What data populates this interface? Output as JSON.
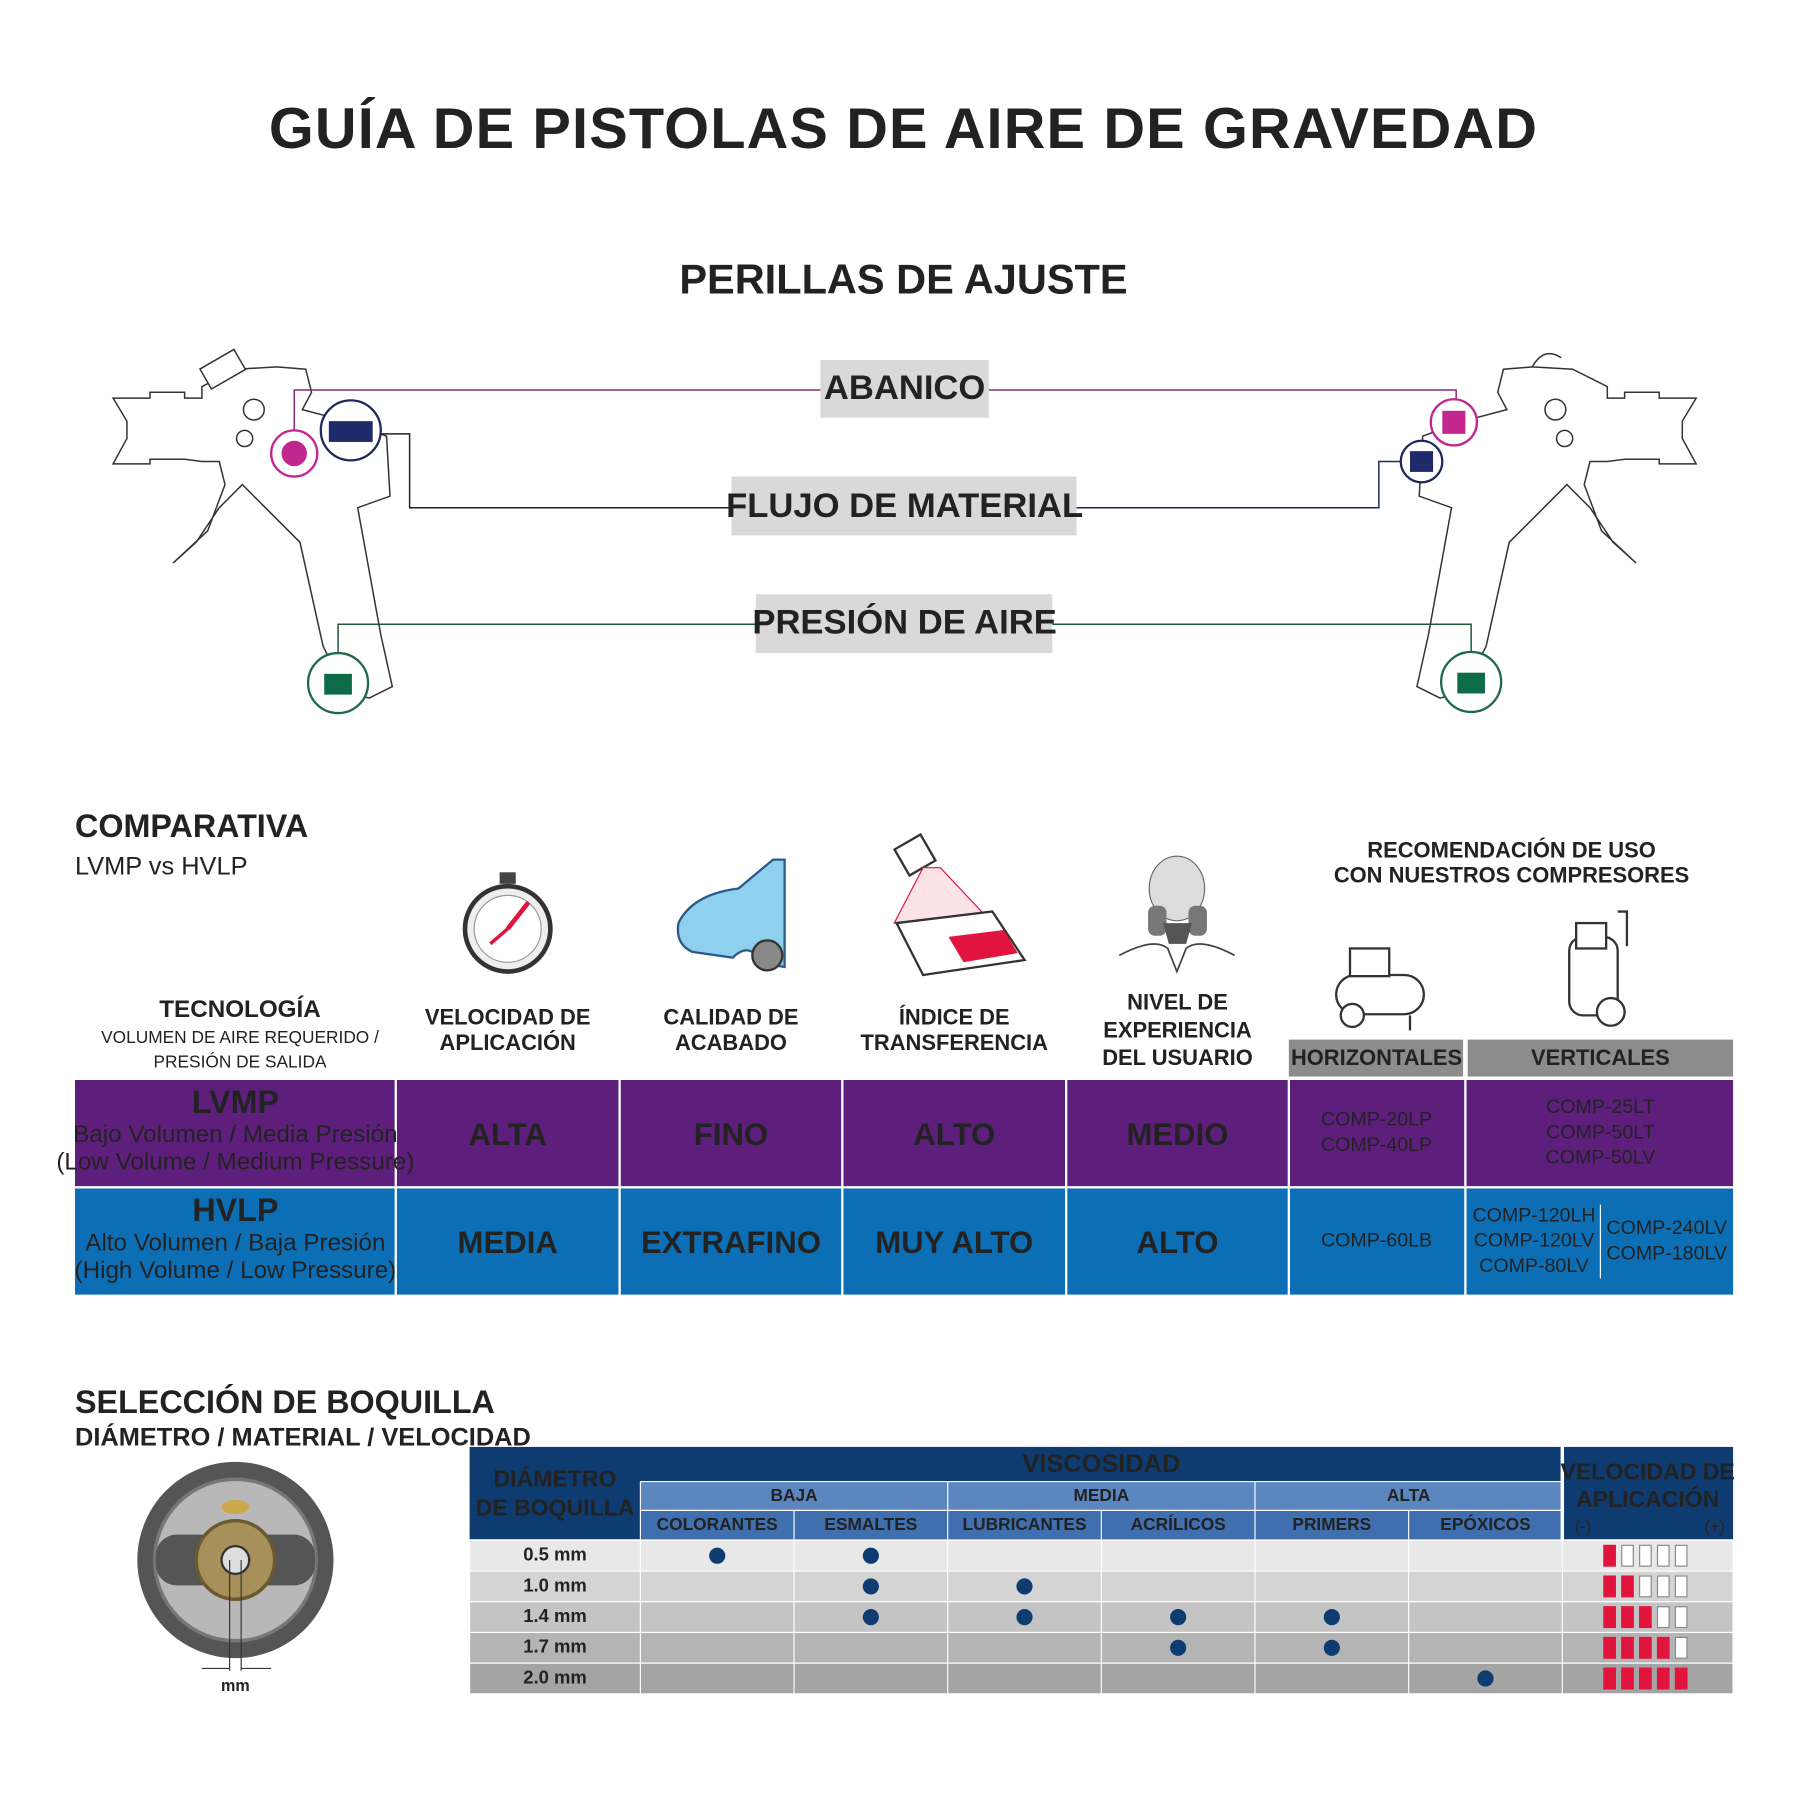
{
  "title": "GUÍA DE PISTOLAS DE AIRE DE GRAVEDAD",
  "knobs": {
    "title": "PERILLAS DE AJUSTE",
    "labels": [
      "ABANICO",
      "FLUJO DE MATERIAL",
      "PRESIÓN DE AIRE"
    ]
  },
  "comparison": {
    "title": "COMPARATIVA",
    "subtitle": "LVMP vs HVLP",
    "headers": {
      "technology": "TECNOLOGÍA",
      "technology_note": [
        "VOLUMEN DE AIRE REQUERIDO /",
        "PRESIÓN DE SALIDA"
      ],
      "columns": [
        [
          "VELOCIDAD DE",
          "APLICACIÓN"
        ],
        [
          "CALIDAD DE",
          "ACABADO"
        ],
        [
          "ÍNDICE DE",
          "TRANSFERENCIA"
        ],
        [
          "NIVEL DE",
          "EXPERIENCIA",
          "DEL USUARIO"
        ]
      ],
      "recommendation": [
        "RECOMENDACIÓN DE USO",
        "CON NUESTROS COMPRESORES"
      ],
      "horizontal": "HORIZONTALES",
      "vertical": "VERTICALES"
    },
    "rows": [
      {
        "name": "LVMP",
        "desc": "Bajo Volumen / Media Presión",
        "desc_en": "(Low Volume / Medium Pressure)",
        "values": [
          "ALTA",
          "FINO",
          "ALTO",
          "MEDIO"
        ],
        "horizontal": [
          "COMP-20LP",
          "COMP-40LP"
        ],
        "vertical": [
          [
            "COMP-25LT",
            "COMP-50LT",
            "COMP-50LV"
          ]
        ]
      },
      {
        "name": "HVLP",
        "desc": "Alto Volumen / Baja Presión",
        "desc_en": "(High Volume / Low Pressure)",
        "values": [
          "MEDIA",
          "EXTRAFINO",
          "MUY ALTO",
          "ALTO"
        ],
        "horizontal": [
          "COMP-60LB"
        ],
        "vertical": [
          [
            "COMP-120LH",
            "COMP-120LV",
            "COMP-80LV"
          ],
          [
            "COMP-240LV",
            "COMP-180LV"
          ]
        ]
      }
    ]
  },
  "nozzle": {
    "title": "SELECCIÓN DE BOQUILLA",
    "subtitle": "DIÁMETRO / MATERIAL / VELOCIDAD",
    "unit_label": "mm",
    "headers": {
      "diameter": [
        "DIÁMETRO",
        "DE BOQUILLA"
      ],
      "viscosity": "VISCOSIDAD",
      "groups": [
        "BAJA",
        "MEDIA",
        "ALTA"
      ],
      "materials": [
        "COLORANTES",
        "ESMALTES",
        "LUBRICANTES",
        "ACRÍLICOS",
        "PRIMERS",
        "EPÓXICOS"
      ],
      "speed": [
        "VELOCIDAD DE",
        "APLICACIÓN"
      ],
      "speed_min": "(-)",
      "speed_max": "(+)"
    },
    "speed_scale": 5,
    "rows": [
      {
        "size": "0.5 mm",
        "uses": [
          true,
          true,
          false,
          false,
          false,
          false
        ],
        "speed": 1
      },
      {
        "size": "1.0 mm",
        "uses": [
          false,
          true,
          true,
          false,
          false,
          false
        ],
        "speed": 2
      },
      {
        "size": "1.4 mm",
        "uses": [
          false,
          true,
          true,
          true,
          true,
          false
        ],
        "speed": 3
      },
      {
        "size": "1.7 mm",
        "uses": [
          false,
          false,
          false,
          true,
          true,
          false
        ],
        "speed": 4
      },
      {
        "size": "2.0 mm",
        "uses": [
          false,
          false,
          false,
          false,
          false,
          true
        ],
        "speed": 5
      }
    ]
  }
}
